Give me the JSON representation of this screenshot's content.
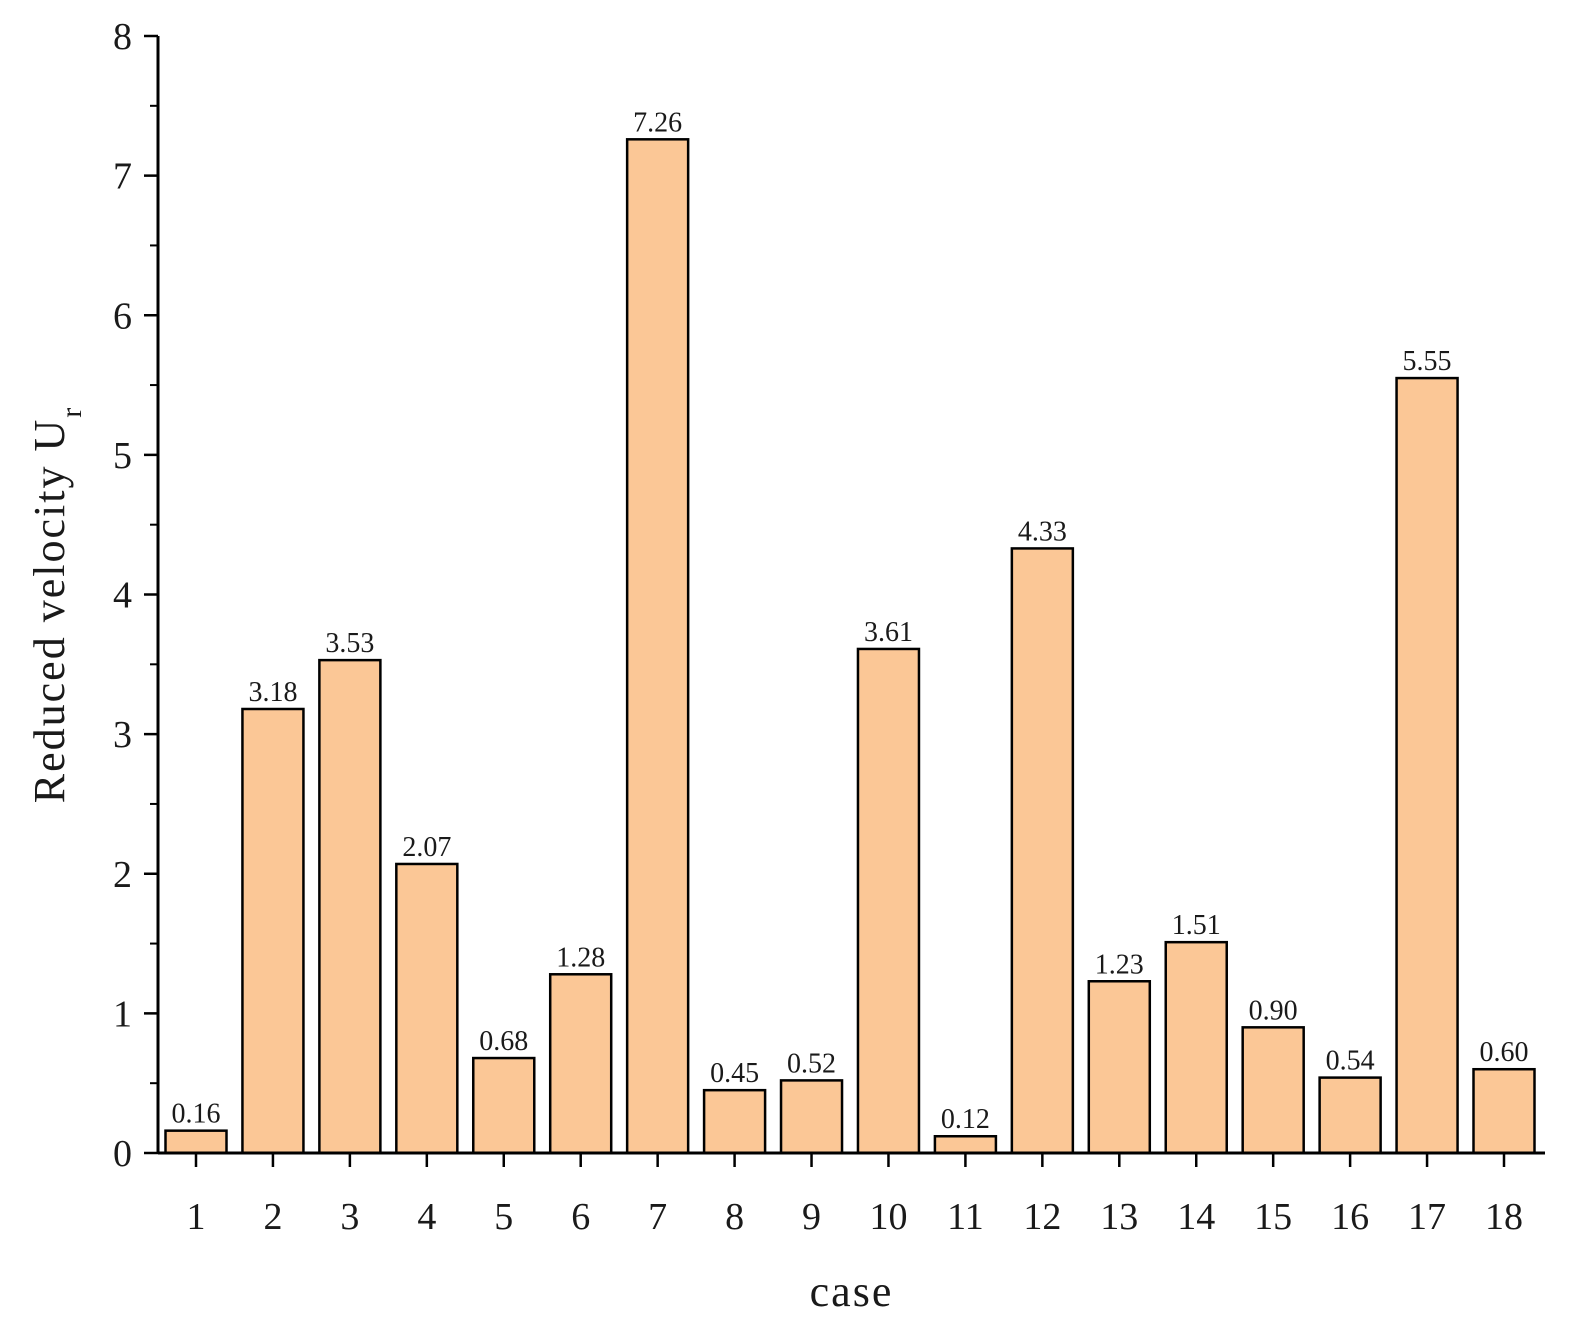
{
  "chart_data": {
    "type": "bar",
    "title": "",
    "xlabel": "case",
    "ylabel": "Reduced velocity U",
    "ylabel_subscript": "r",
    "categories": [
      "1",
      "2",
      "3",
      "4",
      "5",
      "6",
      "7",
      "8",
      "9",
      "10",
      "11",
      "12",
      "13",
      "14",
      "15",
      "16",
      "17",
      "18"
    ],
    "values": [
      0.16,
      3.18,
      3.53,
      2.07,
      0.68,
      1.28,
      7.26,
      0.45,
      0.52,
      3.61,
      0.12,
      4.33,
      1.23,
      1.51,
      0.9,
      0.54,
      5.55,
      0.6
    ],
    "value_labels": [
      "0.16",
      "3.18",
      "3.53",
      "2.07",
      "0.68",
      "1.28",
      "7.26",
      "0.45",
      "0.52",
      "3.61",
      "0.12",
      "4.33",
      "1.23",
      "1.51",
      "0.90",
      "0.54",
      "5.55",
      "0.60"
    ],
    "ylim": [
      0,
      8
    ],
    "yticks": [
      0,
      1,
      2,
      3,
      4,
      5,
      6,
      7,
      8
    ],
    "ytick_labels": [
      "0",
      "1",
      "2",
      "3",
      "4",
      "5",
      "6",
      "7",
      "8"
    ],
    "grid": false,
    "legend": "none",
    "colors": {
      "bar_fill": "#FBC796",
      "bar_edge": "#000000"
    }
  }
}
